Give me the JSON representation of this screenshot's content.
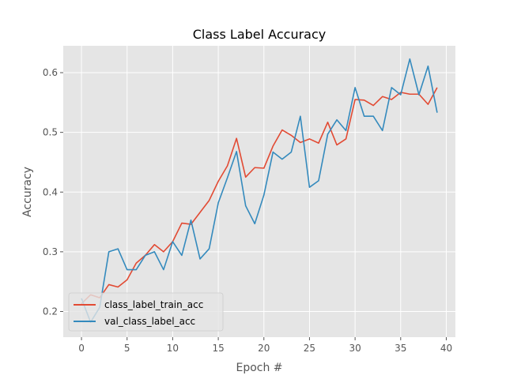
{
  "chart_data": {
    "type": "line",
    "title": "Class Label Accuracy",
    "xlabel": "Epoch #",
    "ylabel": "Accuracy",
    "xlim": [
      -2,
      41
    ],
    "ylim": [
      0.157,
      0.645
    ],
    "xticks": [
      0,
      5,
      10,
      15,
      20,
      25,
      30,
      35,
      40
    ],
    "yticks": [
      0.2,
      0.3,
      0.4,
      0.5,
      0.6
    ],
    "grid": true,
    "legend_position": "lower-left",
    "x": [
      0,
      1,
      2,
      3,
      4,
      5,
      6,
      7,
      8,
      9,
      10,
      11,
      12,
      13,
      14,
      15,
      16,
      17,
      18,
      19,
      20,
      21,
      22,
      23,
      24,
      25,
      26,
      27,
      28,
      29,
      30,
      31,
      32,
      33,
      34,
      35,
      36,
      37,
      38,
      39
    ],
    "series": [
      {
        "name": "class_label_train_acc",
        "color": "#e24a33",
        "values": [
          0.213,
          0.228,
          0.223,
          0.245,
          0.241,
          0.253,
          0.281,
          0.294,
          0.312,
          0.3,
          0.317,
          0.348,
          0.346,
          0.366,
          0.386,
          0.418,
          0.444,
          0.49,
          0.425,
          0.441,
          0.44,
          0.477,
          0.504,
          0.495,
          0.483,
          0.489,
          0.482,
          0.517,
          0.479,
          0.489,
          0.555,
          0.554,
          0.545,
          0.56,
          0.555,
          0.567,
          0.564,
          0.564,
          0.547,
          0.575
        ]
      },
      {
        "name": "val_class_label_acc",
        "color": "#348abd",
        "values": [
          0.222,
          0.182,
          0.207,
          0.3,
          0.305,
          0.27,
          0.27,
          0.294,
          0.3,
          0.27,
          0.317,
          0.294,
          0.353,
          0.288,
          0.305,
          0.382,
          0.424,
          0.468,
          0.377,
          0.347,
          0.395,
          0.467,
          0.455,
          0.467,
          0.527,
          0.408,
          0.419,
          0.497,
          0.521,
          0.503,
          0.575,
          0.527,
          0.527,
          0.503,
          0.575,
          0.563,
          0.623,
          0.563,
          0.611,
          0.533
        ]
      }
    ]
  }
}
